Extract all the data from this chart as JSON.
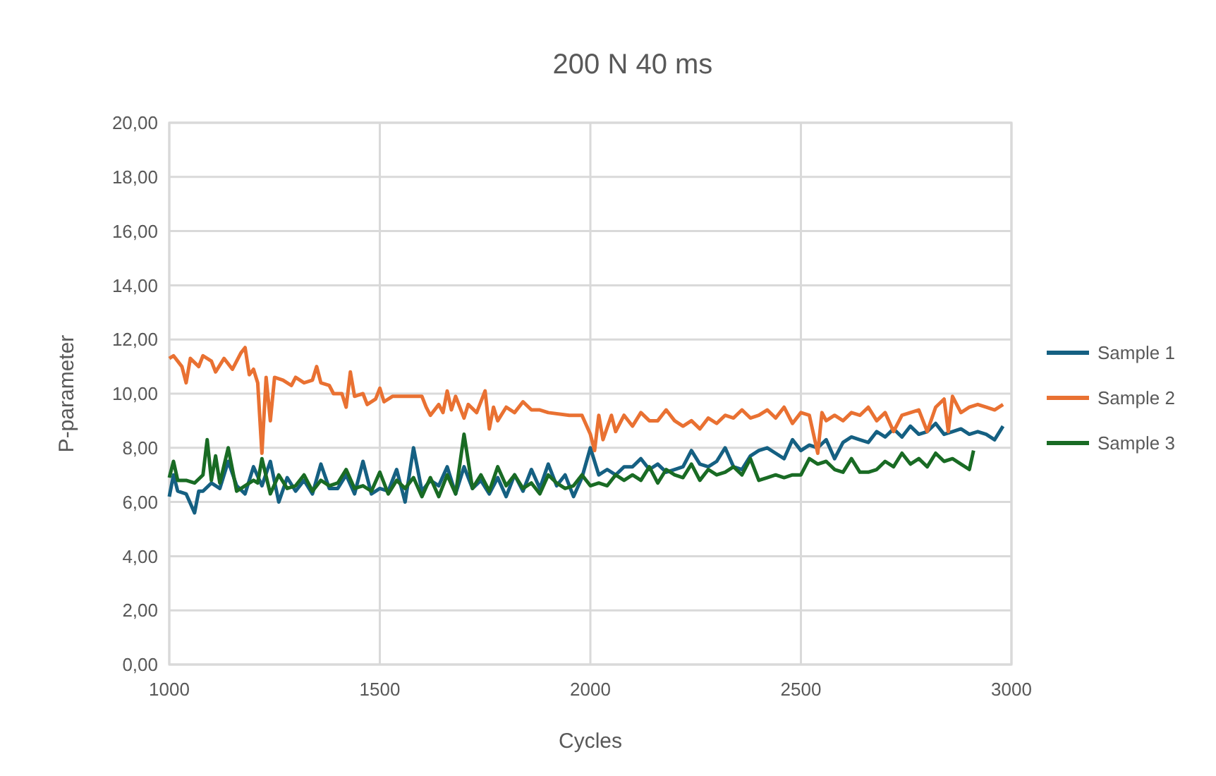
{
  "chart_data": {
    "type": "line",
    "title": "200 N 40 ms",
    "xlabel": "Cycles",
    "ylabel": "P-parameter",
    "xlim": [
      1000,
      3000
    ],
    "xticks": [
      1000,
      1500,
      2000,
      2500,
      3000
    ],
    "ylim": [
      0,
      20
    ],
    "yticks": [
      {
        "value": 0,
        "label": "0,00"
      },
      {
        "value": 2,
        "label": "2,00"
      },
      {
        "value": 4,
        "label": "4,00"
      },
      {
        "value": 6,
        "label": "6,00"
      },
      {
        "value": 8,
        "label": "8,00"
      },
      {
        "value": 10,
        "label": "10,00"
      },
      {
        "value": 12,
        "label": "12,00"
      },
      {
        "value": 14,
        "label": "14,00"
      },
      {
        "value": 16,
        "label": "16,00"
      },
      {
        "value": 18,
        "label": "18,00"
      },
      {
        "value": 20,
        "label": "20,00"
      }
    ],
    "grid": true,
    "legend": "right",
    "marker": "none",
    "line_style": "solid",
    "series": [
      {
        "name": "Sample 1",
        "color": "#156082",
        "x": [
          1000,
          1010,
          1020,
          1040,
          1060,
          1070,
          1080,
          1100,
          1120,
          1140,
          1160,
          1180,
          1200,
          1220,
          1240,
          1260,
          1280,
          1300,
          1320,
          1340,
          1360,
          1380,
          1400,
          1420,
          1440,
          1460,
          1480,
          1500,
          1520,
          1540,
          1560,
          1580,
          1600,
          1620,
          1640,
          1660,
          1680,
          1700,
          1720,
          1740,
          1760,
          1780,
          1800,
          1820,
          1840,
          1860,
          1880,
          1900,
          1920,
          1940,
          1960,
          1980,
          2000,
          2020,
          2040,
          2060,
          2080,
          2100,
          2120,
          2140,
          2160,
          2180,
          2200,
          2220,
          2240,
          2260,
          2280,
          2300,
          2320,
          2340,
          2360,
          2380,
          2400,
          2420,
          2440,
          2460,
          2480,
          2500,
          2520,
          2540,
          2560,
          2580,
          2600,
          2620,
          2640,
          2660,
          2680,
          2700,
          2720,
          2740,
          2760,
          2780,
          2800,
          2820,
          2840,
          2860,
          2880,
          2900,
          2920,
          2940,
          2960,
          2980
        ],
        "values": [
          6.2,
          7.0,
          6.4,
          6.3,
          5.6,
          6.4,
          6.4,
          6.7,
          6.5,
          7.5,
          6.6,
          6.3,
          7.3,
          6.6,
          7.5,
          6.0,
          6.9,
          6.4,
          6.8,
          6.3,
          7.4,
          6.5,
          6.5,
          7.0,
          6.3,
          7.5,
          6.3,
          6.5,
          6.4,
          7.2,
          6.0,
          8.0,
          6.4,
          6.8,
          6.6,
          7.3,
          6.3,
          7.3,
          6.5,
          6.8,
          6.3,
          6.9,
          6.2,
          7.0,
          6.4,
          7.2,
          6.5,
          7.4,
          6.6,
          7.0,
          6.2,
          6.9,
          8.0,
          7.0,
          7.2,
          7.0,
          7.3,
          7.3,
          7.6,
          7.2,
          7.4,
          7.1,
          7.2,
          7.3,
          7.9,
          7.4,
          7.3,
          7.5,
          8.0,
          7.3,
          7.2,
          7.7,
          7.9,
          8.0,
          7.8,
          7.6,
          8.3,
          7.9,
          8.1,
          8.0,
          8.3,
          7.6,
          8.2,
          8.4,
          8.3,
          8.2,
          8.6,
          8.4,
          8.7,
          8.4,
          8.8,
          8.5,
          8.6,
          8.9,
          8.5,
          8.6,
          8.7,
          8.5,
          8.6,
          8.5,
          8.3,
          8.8
        ]
      },
      {
        "name": "Sample 2",
        "color": "#e97132",
        "x": [
          1000,
          1010,
          1030,
          1040,
          1050,
          1070,
          1080,
          1100,
          1110,
          1130,
          1150,
          1170,
          1180,
          1190,
          1200,
          1210,
          1220,
          1230,
          1240,
          1250,
          1270,
          1290,
          1300,
          1320,
          1340,
          1350,
          1360,
          1380,
          1390,
          1410,
          1420,
          1430,
          1440,
          1460,
          1470,
          1490,
          1500,
          1510,
          1530,
          1560,
          1600,
          1610,
          1620,
          1640,
          1650,
          1660,
          1670,
          1680,
          1700,
          1710,
          1730,
          1750,
          1760,
          1770,
          1780,
          1800,
          1820,
          1840,
          1860,
          1880,
          1900,
          1950,
          1980,
          2000,
          2010,
          2020,
          2030,
          2050,
          2060,
          2080,
          2100,
          2120,
          2140,
          2160,
          2180,
          2200,
          2220,
          2240,
          2260,
          2280,
          2300,
          2320,
          2340,
          2360,
          2380,
          2400,
          2420,
          2440,
          2460,
          2480,
          2500,
          2520,
          2540,
          2550,
          2560,
          2580,
          2600,
          2620,
          2640,
          2660,
          2680,
          2700,
          2720,
          2740,
          2760,
          2780,
          2800,
          2820,
          2840,
          2850,
          2860,
          2880,
          2900,
          2920,
          2940,
          2960,
          2980
        ],
        "values": [
          11.3,
          11.4,
          11.0,
          10.4,
          11.3,
          11.0,
          11.4,
          11.2,
          10.8,
          11.3,
          10.9,
          11.5,
          11.7,
          10.7,
          10.9,
          10.4,
          7.8,
          10.6,
          9.0,
          10.6,
          10.5,
          10.3,
          10.6,
          10.4,
          10.5,
          11.0,
          10.4,
          10.3,
          10.0,
          10.0,
          9.5,
          10.8,
          9.9,
          10.0,
          9.6,
          9.8,
          10.2,
          9.7,
          9.9,
          9.9,
          9.9,
          9.5,
          9.2,
          9.6,
          9.3,
          10.1,
          9.4,
          9.9,
          9.1,
          9.6,
          9.3,
          10.1,
          8.7,
          9.5,
          9.0,
          9.5,
          9.3,
          9.7,
          9.4,
          9.4,
          9.3,
          9.2,
          9.2,
          8.5,
          7.9,
          9.2,
          8.3,
          9.2,
          8.6,
          9.2,
          8.8,
          9.3,
          9.0,
          9.0,
          9.4,
          9.0,
          8.8,
          9.0,
          8.7,
          9.1,
          8.9,
          9.2,
          9.1,
          9.4,
          9.1,
          9.2,
          9.4,
          9.1,
          9.5,
          8.9,
          9.3,
          9.2,
          7.8,
          9.3,
          9.0,
          9.2,
          9.0,
          9.3,
          9.2,
          9.5,
          9.0,
          9.3,
          8.6,
          9.2,
          9.3,
          9.4,
          8.6,
          9.5,
          9.8,
          8.6,
          9.9,
          9.3,
          9.5,
          9.6,
          9.5,
          9.4,
          9.6
        ]
      },
      {
        "name": "Sample 3",
        "color": "#196b24",
        "x": [
          1000,
          1010,
          1020,
          1040,
          1060,
          1080,
          1090,
          1100,
          1110,
          1120,
          1140,
          1150,
          1160,
          1180,
          1200,
          1210,
          1220,
          1240,
          1260,
          1280,
          1300,
          1320,
          1340,
          1360,
          1380,
          1400,
          1420,
          1440,
          1460,
          1480,
          1500,
          1520,
          1540,
          1560,
          1580,
          1600,
          1620,
          1640,
          1660,
          1680,
          1700,
          1720,
          1740,
          1760,
          1780,
          1800,
          1820,
          1840,
          1860,
          1880,
          1900,
          1920,
          1940,
          1960,
          1980,
          2000,
          2020,
          2040,
          2060,
          2080,
          2100,
          2120,
          2140,
          2160,
          2180,
          2200,
          2220,
          2240,
          2260,
          2280,
          2300,
          2320,
          2340,
          2360,
          2380,
          2400,
          2420,
          2440,
          2460,
          2480,
          2500,
          2520,
          2540,
          2560,
          2580,
          2600,
          2620,
          2640,
          2660,
          2680,
          2700,
          2720,
          2740,
          2760,
          2780,
          2800,
          2820,
          2840,
          2860,
          2880,
          2900,
          2910
        ],
        "values": [
          6.9,
          7.5,
          6.8,
          6.8,
          6.7,
          7.0,
          8.3,
          6.8,
          7.7,
          6.7,
          8.0,
          7.2,
          6.4,
          6.6,
          6.8,
          6.7,
          7.6,
          6.3,
          7.0,
          6.5,
          6.6,
          7.0,
          6.4,
          6.8,
          6.6,
          6.7,
          7.2,
          6.5,
          6.6,
          6.4,
          7.1,
          6.3,
          6.8,
          6.5,
          6.9,
          6.2,
          6.9,
          6.2,
          7.0,
          6.3,
          8.5,
          6.5,
          7.0,
          6.4,
          7.3,
          6.6,
          7.0,
          6.5,
          6.7,
          6.3,
          7.0,
          6.7,
          6.5,
          6.6,
          7.0,
          6.6,
          6.7,
          6.6,
          7.0,
          6.8,
          7.0,
          6.8,
          7.3,
          6.7,
          7.2,
          7.0,
          6.9,
          7.4,
          6.8,
          7.2,
          7.0,
          7.1,
          7.3,
          7.0,
          7.6,
          6.8,
          6.9,
          7.0,
          6.9,
          7.0,
          7.0,
          7.6,
          7.4,
          7.5,
          7.2,
          7.1,
          7.6,
          7.1,
          7.1,
          7.2,
          7.5,
          7.3,
          7.8,
          7.4,
          7.6,
          7.3,
          7.8,
          7.5,
          7.6,
          7.4,
          7.2,
          7.9
        ]
      }
    ]
  }
}
